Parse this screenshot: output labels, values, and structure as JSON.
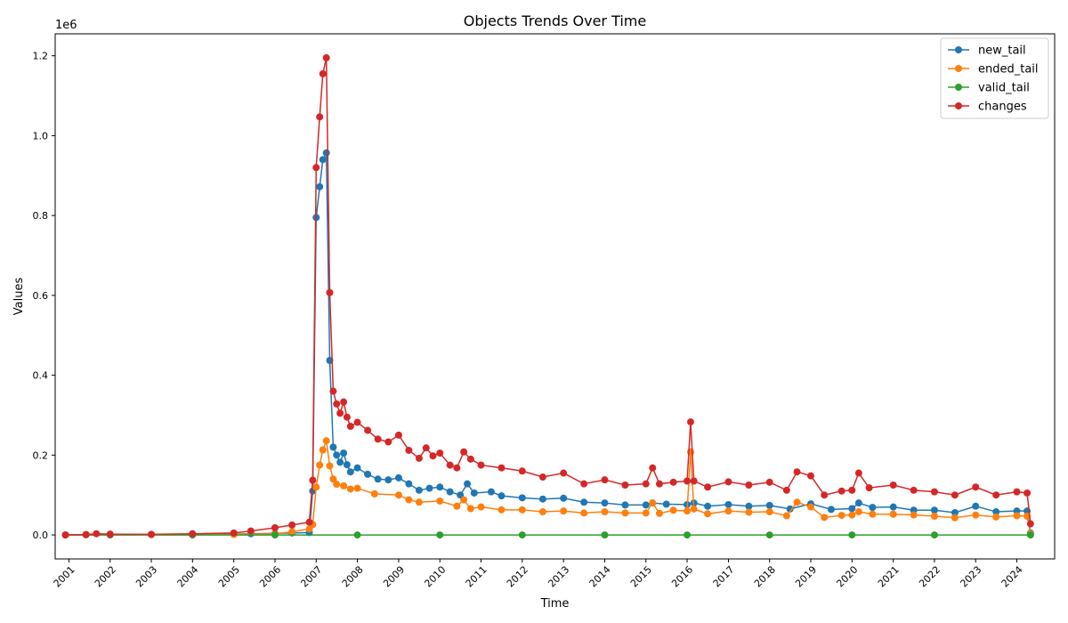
{
  "chart_data": {
    "type": "line",
    "title": "Objects Trends Over Time",
    "xlabel": "Time",
    "ylabel": "Values",
    "y_offset_label": "1e6",
    "ylim": [
      -60000,
      1255000
    ],
    "xlim": [
      "2000-09-01",
      "2024-12-01"
    ],
    "y_ticks": [
      "0.0",
      "0.2",
      "0.4",
      "0.6",
      "0.8",
      "1.0",
      "1.2"
    ],
    "y_tick_values": [
      0,
      200000,
      400000,
      600000,
      800000,
      1000000,
      1200000
    ],
    "x_ticks": [
      "2001",
      "2002",
      "2003",
      "2004",
      "2005",
      "2006",
      "2007",
      "2008",
      "2009",
      "2010",
      "2011",
      "2012",
      "2013",
      "2014",
      "2015",
      "2016",
      "2017",
      "2018",
      "2019",
      "2020",
      "2021",
      "2022",
      "2023",
      "2024"
    ],
    "x_tick_dates": [
      "2001-01-01",
      "2002-01-01",
      "2003-01-01",
      "2004-01-01",
      "2005-01-01",
      "2006-01-01",
      "2007-01-01",
      "2008-01-01",
      "2009-01-01",
      "2010-01-01",
      "2011-01-01",
      "2012-01-01",
      "2013-01-01",
      "2014-01-01",
      "2015-01-01",
      "2016-01-01",
      "2017-01-01",
      "2018-01-01",
      "2019-01-01",
      "2020-01-01",
      "2021-01-01",
      "2022-01-01",
      "2023-01-01",
      "2024-01-01"
    ],
    "grid": false,
    "legend_position": "top-right",
    "series": [
      {
        "name": "new_tail",
        "color": "#1f77b4",
        "points": [
          [
            "2000-12-01",
            0
          ],
          [
            "2001-06-01",
            500
          ],
          [
            "2002-01-01",
            1000
          ],
          [
            "2003-01-01",
            1000
          ],
          [
            "2004-01-01",
            1500
          ],
          [
            "2005-01-01",
            2000
          ],
          [
            "2005-06-01",
            3000
          ],
          [
            "2006-01-01",
            4000
          ],
          [
            "2006-06-01",
            5000
          ],
          [
            "2006-11-01",
            6000
          ],
          [
            "2006-12-01",
            110000
          ],
          [
            "2007-01-01",
            795000
          ],
          [
            "2007-02-01",
            872000
          ],
          [
            "2007-03-01",
            940000
          ],
          [
            "2007-04-01",
            957000
          ],
          [
            "2007-05-01",
            437000
          ],
          [
            "2007-06-01",
            220000
          ],
          [
            "2007-07-01",
            200000
          ],
          [
            "2007-08-01",
            182000
          ],
          [
            "2007-09-01",
            205000
          ],
          [
            "2007-10-01",
            176000
          ],
          [
            "2007-11-01",
            158000
          ],
          [
            "2008-01-01",
            168000
          ],
          [
            "2008-04-01",
            152000
          ],
          [
            "2008-07-01",
            140000
          ],
          [
            "2008-10-01",
            138000
          ],
          [
            "2009-01-01",
            143000
          ],
          [
            "2009-04-01",
            128000
          ],
          [
            "2009-07-01",
            112000
          ],
          [
            "2009-10-01",
            117000
          ],
          [
            "2010-01-01",
            120000
          ],
          [
            "2010-04-01",
            108000
          ],
          [
            "2010-07-01",
            100000
          ],
          [
            "2010-09-01",
            128000
          ],
          [
            "2010-11-01",
            105000
          ],
          [
            "2011-04-01",
            108000
          ],
          [
            "2011-07-01",
            98000
          ],
          [
            "2012-01-01",
            93000
          ],
          [
            "2012-07-01",
            90000
          ],
          [
            "2013-01-01",
            92000
          ],
          [
            "2013-07-01",
            82000
          ],
          [
            "2014-01-01",
            80000
          ],
          [
            "2014-07-01",
            75000
          ],
          [
            "2015-01-01",
            75000
          ],
          [
            "2015-03-01",
            80000
          ],
          [
            "2015-07-01",
            77000
          ],
          [
            "2016-01-01",
            76000
          ],
          [
            "2016-03-01",
            80000
          ],
          [
            "2016-07-01",
            72000
          ],
          [
            "2017-01-01",
            76000
          ],
          [
            "2017-07-01",
            72000
          ],
          [
            "2018-01-01",
            74000
          ],
          [
            "2018-07-01",
            65000
          ],
          [
            "2019-01-01",
            78000
          ],
          [
            "2019-07-01",
            64000
          ],
          [
            "2020-01-01",
            66000
          ],
          [
            "2020-03-01",
            80000
          ],
          [
            "2020-07-01",
            69000
          ],
          [
            "2021-01-01",
            70000
          ],
          [
            "2021-07-01",
            62000
          ],
          [
            "2022-01-01",
            62000
          ],
          [
            "2022-07-01",
            56000
          ],
          [
            "2023-01-01",
            72000
          ],
          [
            "2023-07-01",
            58000
          ],
          [
            "2024-01-01",
            60000
          ],
          [
            "2024-04-01",
            60000
          ],
          [
            "2024-05-01",
            5000
          ]
        ]
      },
      {
        "name": "ended_tail",
        "color": "#ff7f0e",
        "points": [
          [
            "2000-12-01",
            0
          ],
          [
            "2001-06-01",
            300
          ],
          [
            "2002-01-01",
            500
          ],
          [
            "2003-01-01",
            1000
          ],
          [
            "2004-01-01",
            1000
          ],
          [
            "2005-01-01",
            1500
          ],
          [
            "2006-01-01",
            3000
          ],
          [
            "2006-06-01",
            8000
          ],
          [
            "2006-11-01",
            15000
          ],
          [
            "2006-12-01",
            26000
          ],
          [
            "2007-01-01",
            120000
          ],
          [
            "2007-02-01",
            175000
          ],
          [
            "2007-03-01",
            213000
          ],
          [
            "2007-04-01",
            236000
          ],
          [
            "2007-05-01",
            173000
          ],
          [
            "2007-06-01",
            140000
          ],
          [
            "2007-07-01",
            127000
          ],
          [
            "2007-09-01",
            123000
          ],
          [
            "2007-11-01",
            115000
          ],
          [
            "2008-01-01",
            117000
          ],
          [
            "2008-06-01",
            103000
          ],
          [
            "2009-01-01",
            100000
          ],
          [
            "2009-04-01",
            88000
          ],
          [
            "2009-07-01",
            82000
          ],
          [
            "2010-01-01",
            85000
          ],
          [
            "2010-06-01",
            72000
          ],
          [
            "2010-08-01",
            88000
          ],
          [
            "2010-10-01",
            66000
          ],
          [
            "2011-01-01",
            70000
          ],
          [
            "2011-07-01",
            63000
          ],
          [
            "2012-01-01",
            63000
          ],
          [
            "2012-07-01",
            58000
          ],
          [
            "2013-01-01",
            60000
          ],
          [
            "2013-07-01",
            55000
          ],
          [
            "2014-01-01",
            58000
          ],
          [
            "2014-07-01",
            55000
          ],
          [
            "2015-01-01",
            55000
          ],
          [
            "2015-03-01",
            80000
          ],
          [
            "2015-05-01",
            54000
          ],
          [
            "2015-09-01",
            62000
          ],
          [
            "2016-01-01",
            60000
          ],
          [
            "2016-02-01",
            208000
          ],
          [
            "2016-03-01",
            65000
          ],
          [
            "2016-07-01",
            53000
          ],
          [
            "2017-01-01",
            60000
          ],
          [
            "2017-07-01",
            57000
          ],
          [
            "2018-01-01",
            58000
          ],
          [
            "2018-06-01",
            48000
          ],
          [
            "2018-09-01",
            82000
          ],
          [
            "2019-01-01",
            70000
          ],
          [
            "2019-05-01",
            44000
          ],
          [
            "2019-10-01",
            49000
          ],
          [
            "2020-01-01",
            50000
          ],
          [
            "2020-03-01",
            58000
          ],
          [
            "2020-07-01",
            52000
          ],
          [
            "2021-01-01",
            52000
          ],
          [
            "2021-07-01",
            50000
          ],
          [
            "2022-01-01",
            47000
          ],
          [
            "2022-07-01",
            43000
          ],
          [
            "2023-01-01",
            50000
          ],
          [
            "2023-07-01",
            45000
          ],
          [
            "2024-01-01",
            48000
          ],
          [
            "2024-04-01",
            47000
          ],
          [
            "2024-05-01",
            3000
          ]
        ]
      },
      {
        "name": "valid_tail",
        "color": "#2ca02c",
        "points": [
          [
            "2000-12-01",
            0
          ],
          [
            "2002-01-01",
            0
          ],
          [
            "2004-01-01",
            0
          ],
          [
            "2006-01-01",
            0
          ],
          [
            "2008-01-01",
            0
          ],
          [
            "2010-01-01",
            0
          ],
          [
            "2012-01-01",
            0
          ],
          [
            "2014-01-01",
            0
          ],
          [
            "2016-01-01",
            0
          ],
          [
            "2018-01-01",
            0
          ],
          [
            "2020-01-01",
            0
          ],
          [
            "2022-01-01",
            0
          ],
          [
            "2024-05-01",
            0
          ]
        ]
      },
      {
        "name": "changes",
        "color": "#d62728",
        "points": [
          [
            "2000-12-01",
            0
          ],
          [
            "2001-06-01",
            1000
          ],
          [
            "2001-09-01",
            3000
          ],
          [
            "2002-01-01",
            2000
          ],
          [
            "2003-01-01",
            1500
          ],
          [
            "2004-01-01",
            3000
          ],
          [
            "2005-01-01",
            5000
          ],
          [
            "2005-06-01",
            10000
          ],
          [
            "2006-01-01",
            18000
          ],
          [
            "2006-06-01",
            25000
          ],
          [
            "2006-11-01",
            32000
          ],
          [
            "2006-12-01",
            137000
          ],
          [
            "2007-01-01",
            920000
          ],
          [
            "2007-02-01",
            1047000
          ],
          [
            "2007-03-01",
            1155000
          ],
          [
            "2007-04-01",
            1195000
          ],
          [
            "2007-05-01",
            607000
          ],
          [
            "2007-06-01",
            360000
          ],
          [
            "2007-07-01",
            328000
          ],
          [
            "2007-08-01",
            305000
          ],
          [
            "2007-09-01",
            333000
          ],
          [
            "2007-10-01",
            295000
          ],
          [
            "2007-11-01",
            272000
          ],
          [
            "2008-01-01",
            282000
          ],
          [
            "2008-04-01",
            262000
          ],
          [
            "2008-07-01",
            240000
          ],
          [
            "2008-10-01",
            233000
          ],
          [
            "2009-01-01",
            250000
          ],
          [
            "2009-04-01",
            212000
          ],
          [
            "2009-07-01",
            192000
          ],
          [
            "2009-09-01",
            218000
          ],
          [
            "2009-11-01",
            198000
          ],
          [
            "2010-01-01",
            205000
          ],
          [
            "2010-04-01",
            175000
          ],
          [
            "2010-06-01",
            168000
          ],
          [
            "2010-08-01",
            208000
          ],
          [
            "2010-10-01",
            190000
          ],
          [
            "2011-01-01",
            175000
          ],
          [
            "2011-07-01",
            168000
          ],
          [
            "2012-01-01",
            160000
          ],
          [
            "2012-07-01",
            145000
          ],
          [
            "2013-01-01",
            155000
          ],
          [
            "2013-07-01",
            128000
          ],
          [
            "2014-01-01",
            138000
          ],
          [
            "2014-07-01",
            125000
          ],
          [
            "2015-01-01",
            128000
          ],
          [
            "2015-03-01",
            168000
          ],
          [
            "2015-05-01",
            128000
          ],
          [
            "2015-09-01",
            132000
          ],
          [
            "2016-01-01",
            135000
          ],
          [
            "2016-02-01",
            283000
          ],
          [
            "2016-03-01",
            135000
          ],
          [
            "2016-07-01",
            120000
          ],
          [
            "2017-01-01",
            133000
          ],
          [
            "2017-07-01",
            125000
          ],
          [
            "2018-01-01",
            132000
          ],
          [
            "2018-06-01",
            112000
          ],
          [
            "2018-09-01",
            158000
          ],
          [
            "2019-01-01",
            148000
          ],
          [
            "2019-05-01",
            100000
          ],
          [
            "2019-10-01",
            110000
          ],
          [
            "2020-01-01",
            112000
          ],
          [
            "2020-03-01",
            155000
          ],
          [
            "2020-06-01",
            118000
          ],
          [
            "2021-01-01",
            125000
          ],
          [
            "2021-07-01",
            112000
          ],
          [
            "2022-01-01",
            108000
          ],
          [
            "2022-07-01",
            100000
          ],
          [
            "2023-01-01",
            120000
          ],
          [
            "2023-07-01",
            100000
          ],
          [
            "2024-01-01",
            108000
          ],
          [
            "2024-04-01",
            105000
          ],
          [
            "2024-05-01",
            28000
          ]
        ]
      }
    ]
  }
}
